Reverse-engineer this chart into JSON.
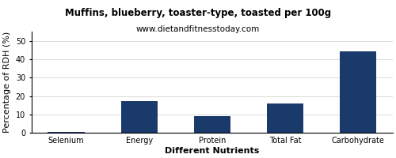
{
  "title": "Muffins, blueberry, toaster-type, toasted per 100g",
  "subtitle": "www.dietandfitnesstoday.com",
  "xlabel": "Different Nutrients",
  "ylabel": "Percentage of RDH (%)",
  "categories": [
    "Selenium",
    "Energy",
    "Protein",
    "Total Fat",
    "Carbohydrate"
  ],
  "values": [
    0.3,
    17.2,
    9.3,
    16.1,
    44.2
  ],
  "bar_color": "#1a3a6b",
  "ylim": [
    0,
    55
  ],
  "yticks": [
    0,
    10,
    20,
    30,
    40,
    50
  ],
  "background_color": "#ffffff",
  "title_fontsize": 8.5,
  "subtitle_fontsize": 7.5,
  "axis_label_fontsize": 8,
  "tick_fontsize": 7
}
